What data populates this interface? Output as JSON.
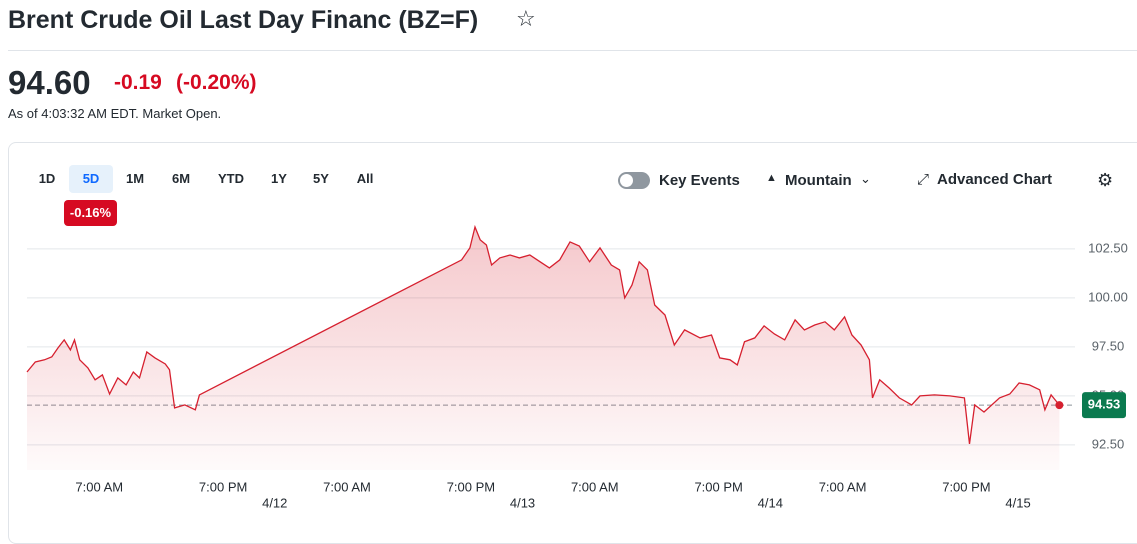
{
  "header": {
    "title": "Brent Crude Oil Last Day Financ (BZ=F)"
  },
  "quote": {
    "price": "94.60",
    "change": "-0.19",
    "change_percent": "(-0.20%)",
    "as_of": "As of 4:03:32 AM EDT. Market Open."
  },
  "toolbar": {
    "ranges": [
      "1D",
      "5D",
      "1M",
      "6M",
      "YTD",
      "1Y",
      "5Y",
      "All"
    ],
    "selected": 1,
    "range_change": "-0.16%",
    "key_events": "Key Events",
    "chart_type": "Mountain",
    "advanced_chart": "Advanced Chart"
  },
  "chart_data": {
    "type": "area",
    "color": "#d6202f",
    "x": [
      0,
      0.8,
      1.7,
      2.4,
      3.0,
      3.6,
      4.2,
      4.6,
      5.1,
      5.9,
      6.6,
      7.3,
      8.0,
      8.8,
      9.6,
      10.3,
      10.9,
      11.6,
      12.4,
      13.4,
      13.8,
      14.3,
      15.3,
      16.3,
      16.7,
      42.1,
      42.9,
      43.4,
      43.9,
      44.5,
      45.0,
      45.8,
      46.8,
      47.7,
      48.7,
      49.7,
      50.6,
      51.6,
      52.6,
      53.5,
      54.5,
      55.5,
      56.6,
      57.4,
      57.9,
      58.6,
      59.3,
      60.1,
      60.8,
      61.8,
      62.7,
      63.7,
      65.2,
      66.3,
      67.1,
      68.1,
      68.8,
      69.5,
      70.5,
      71.4,
      72.4,
      73.4,
      74.4,
      75.3,
      76.3,
      77.3,
      78.2,
      79.2,
      79.9,
      80.8,
      81.6,
      81.9,
      82.6,
      83.5,
      84.5,
      85.7,
      86.5,
      87.9,
      89.4,
      90.8,
      91.3,
      91.8,
      92.7,
      94.2,
      95.2,
      96.1,
      97.1,
      98.1,
      98.6,
      99.2,
      100
    ],
    "values": [
      96.22,
      96.73,
      96.84,
      96.99,
      97.45,
      97.86,
      97.35,
      97.86,
      96.84,
      96.43,
      95.82,
      96.07,
      95.1,
      95.92,
      95.56,
      96.22,
      95.92,
      97.24,
      96.94,
      96.63,
      96.33,
      94.39,
      94.54,
      94.29,
      95.05,
      101.94,
      102.55,
      103.62,
      102.96,
      102.7,
      101.68,
      102.04,
      102.19,
      102.04,
      102.19,
      101.84,
      101.53,
      101.94,
      102.86,
      102.65,
      101.84,
      102.55,
      101.68,
      101.43,
      100.0,
      100.66,
      101.84,
      101.43,
      99.64,
      99.13,
      97.6,
      98.37,
      97.96,
      98.11,
      96.94,
      96.84,
      96.58,
      97.76,
      97.96,
      98.57,
      98.16,
      97.86,
      98.88,
      98.37,
      98.62,
      98.78,
      98.37,
      99.03,
      98.11,
      97.6,
      96.84,
      94.9,
      95.82,
      95.41,
      94.9,
      94.54,
      95.0,
      95.05,
      95.0,
      94.9,
      92.55,
      94.54,
      94.18,
      94.9,
      95.1,
      95.66,
      95.56,
      95.31,
      94.29,
      95.05,
      94.53
    ],
    "xlim": [
      0,
      102
    ],
    "ylim": [
      91.22,
      103.72
    ],
    "yticks": [
      {
        "value": 92.5,
        "label": "92.50"
      },
      {
        "value": 95,
        "label": "95.00"
      },
      {
        "value": 97.5,
        "label": "97.50"
      },
      {
        "value": 100,
        "label": "100.00"
      },
      {
        "value": 102.5,
        "label": "102.50"
      }
    ],
    "xticks": [
      {
        "value": 7,
        "label": "7:00 AM"
      },
      {
        "value": 19,
        "label": "7:00 PM"
      },
      {
        "value": 31,
        "label": "7:00 AM"
      },
      {
        "value": 43,
        "label": "7:00 PM"
      },
      {
        "value": 55,
        "label": "7:00 AM"
      },
      {
        "value": 67,
        "label": "7:00 PM"
      },
      {
        "value": 79,
        "label": "7:00 AM"
      },
      {
        "value": 91,
        "label": "7:00 PM"
      }
    ],
    "date_ticks": [
      {
        "value": 24,
        "label": "4/12"
      },
      {
        "value": 48,
        "label": "4/13"
      },
      {
        "value": 72,
        "label": "4/14"
      },
      {
        "value": 96,
        "label": "4/15"
      }
    ],
    "reference_line": {
      "value": 94.53,
      "label": "94.53"
    },
    "grid": true
  }
}
